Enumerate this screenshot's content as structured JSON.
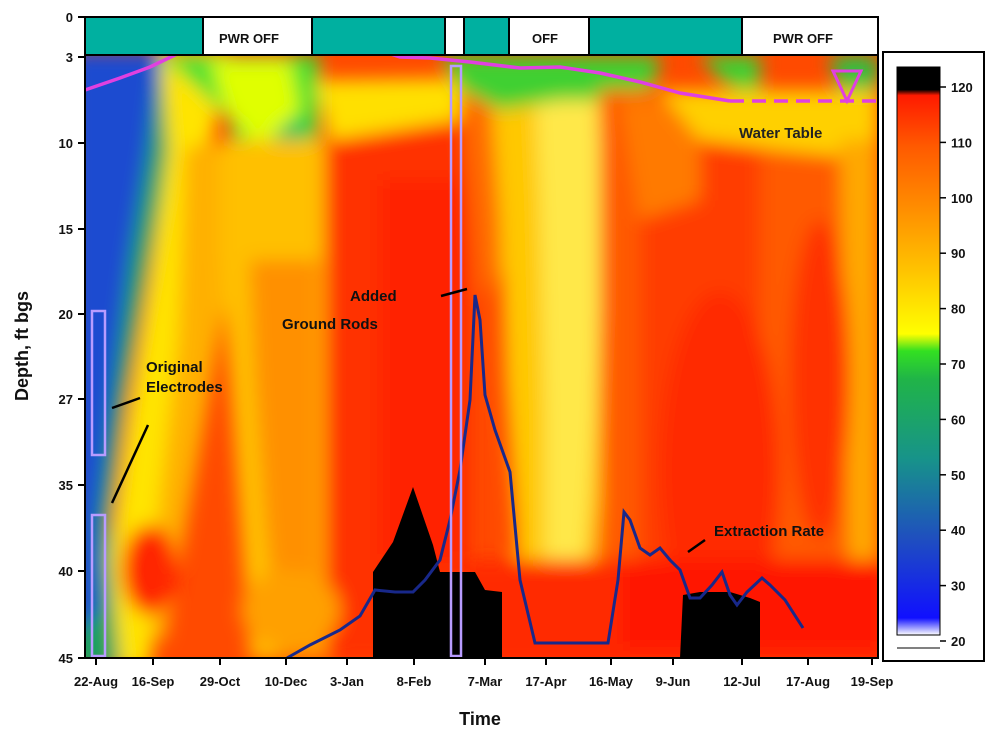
{
  "chart_data": {
    "type": "heatmap",
    "title": "",
    "xlabel": "Time",
    "ylabel": "Depth, ft bgs",
    "x_ticks": [
      "22-Aug",
      "16-Sep",
      "29-Oct",
      "10-Dec",
      "3-Jan",
      "8-Feb",
      "7-Mar",
      "17-Apr",
      "16-May",
      "9-Jun",
      "12-Jul",
      "17-Aug",
      "19-Sep"
    ],
    "y_ticks": [
      "0",
      "3",
      "10",
      "15",
      "20",
      "27",
      "35",
      "40",
      "45"
    ],
    "colorbar": {
      "ticks": [
        "20",
        "30",
        "40",
        "50",
        "60",
        "70",
        "80",
        "90",
        "100",
        "110",
        "120"
      ],
      "range": [
        20,
        120
      ],
      "colors": [
        "#ffffff",
        "#1010ff",
        "#1f4fbf",
        "#17938a",
        "#20b448",
        "#33e021",
        "#ffff00",
        "#ffc400",
        "#ff8e00",
        "#ff5a00",
        "#ff1a00",
        "#000000"
      ]
    },
    "power_status": [
      {
        "from": "22-Aug",
        "to": "mid-Sep",
        "state": "on",
        "label": ""
      },
      {
        "from": "late-Sep",
        "to": "late-Nov",
        "state": "off",
        "label": "PWR OFF"
      },
      {
        "from": "late-Nov",
        "to": "late-Feb",
        "state": "on",
        "label": ""
      },
      {
        "from": "late-Feb",
        "to": "early-Mar",
        "state": "off",
        "label": ""
      },
      {
        "from": "early-Mar",
        "to": "late-Mar",
        "state": "on",
        "label": ""
      },
      {
        "from": "late-Mar",
        "to": "late-Apr",
        "state": "off",
        "label": "OFF"
      },
      {
        "from": "late-Apr",
        "to": "mid-Jul",
        "state": "on",
        "label": ""
      },
      {
        "from": "mid-Jul",
        "to": "19-Sep",
        "state": "off",
        "label": "PWR OFF"
      }
    ],
    "annotations": {
      "original_electrodes": "Original\nElectrodes",
      "added_ground_rods": "Added\nGround Rods",
      "extraction_rate": "Extraction Rate",
      "water_table": "Water Table"
    },
    "series": [
      {
        "name": "Water Table",
        "color": "#e040e0",
        "depth_ft": [
          4.8,
          2.8,
          1.2,
          1.3,
          1.8,
          2.0,
          2.1,
          2.3,
          2.7,
          3.1,
          3.3,
          3.5,
          4.0,
          4.3,
          4.6,
          5.0,
          5.3,
          5.5,
          5.6,
          5.7
        ]
      },
      {
        "name": "Extraction Rate",
        "color": "#18288a",
        "relative_values": [
          0.0,
          0.05,
          0.12,
          0.22,
          0.23,
          0.3,
          0.52,
          0.98,
          0.7,
          0.52,
          0.04,
          0.05,
          0.05,
          0.04,
          0.41,
          0.3,
          0.26,
          0.18,
          0.18,
          0.07,
          0.14,
          0.06
        ]
      }
    ],
    "grid": false,
    "legend": "right"
  },
  "colors": {
    "power_on": "#00b0a0",
    "power_off": "#ffffff",
    "electrode_outline": "#b89cff"
  }
}
